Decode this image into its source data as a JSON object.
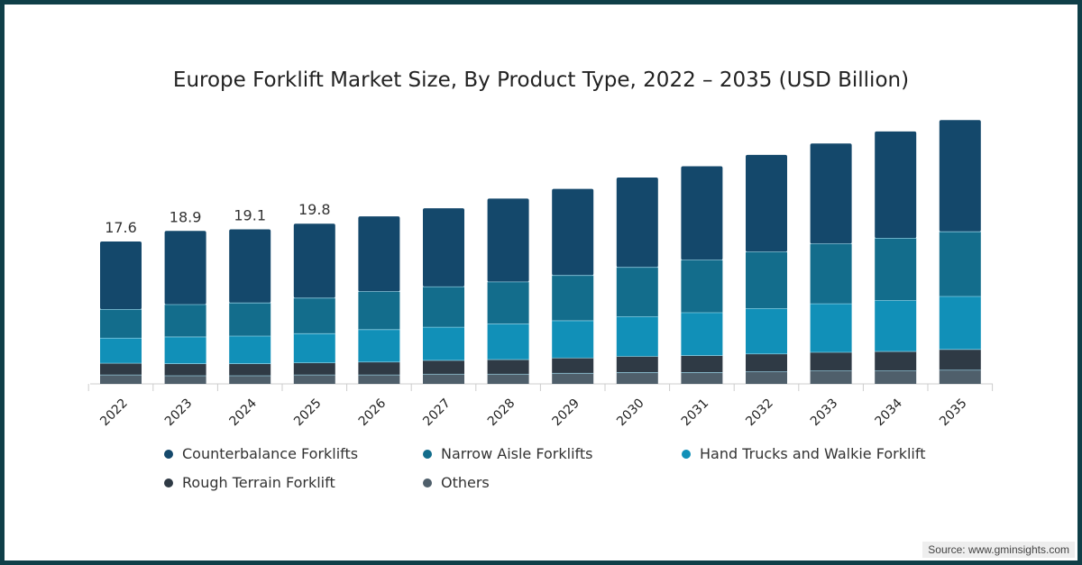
{
  "chart_data": {
    "type": "bar",
    "stacked": true,
    "title": "Europe Forklift Market Size, By Product Type, 2022 – 2035 (USD Billion)",
    "xlabel": "",
    "ylabel": "",
    "ylim": [
      0,
      35
    ],
    "grid": false,
    "legend_position": "bottom",
    "categories": [
      "2022",
      "2023",
      "2024",
      "2025",
      "2026",
      "2027",
      "2028",
      "2029",
      "2030",
      "2031",
      "2032",
      "2033",
      "2034",
      "2035"
    ],
    "series": [
      {
        "name": "Others",
        "color": "#4f5f6b",
        "values": [
          1.1,
          1.0,
          1.0,
          1.1,
          1.1,
          1.2,
          1.2,
          1.3,
          1.4,
          1.4,
          1.5,
          1.6,
          1.6,
          1.7
        ]
      },
      {
        "name": "Rough Terrain Forklift",
        "color": "#2f3a45",
        "values": [
          1.45,
          1.5,
          1.5,
          1.5,
          1.6,
          1.7,
          1.8,
          1.9,
          2.0,
          2.1,
          2.2,
          2.3,
          2.4,
          2.55
        ]
      },
      {
        "name": "Hand Trucks and Walkie Forklift",
        "color": "#1190b8",
        "values": [
          3.1,
          3.3,
          3.4,
          3.6,
          4.0,
          4.1,
          4.4,
          4.6,
          4.9,
          5.3,
          5.6,
          6.0,
          6.3,
          6.55
        ]
      },
      {
        "name": "Narrow Aisle Forklifts",
        "color": "#136d8c",
        "values": [
          3.55,
          4.0,
          4.1,
          4.4,
          4.7,
          5.0,
          5.2,
          5.6,
          6.1,
          6.5,
          7.0,
          7.4,
          7.7,
          8.0
        ]
      },
      {
        "name": "Counterbalance Forklifts",
        "color": "#14486b",
        "values": [
          8.4,
          9.1,
          9.1,
          9.2,
          9.3,
          9.7,
          10.3,
          10.7,
          11.1,
          11.6,
          12.0,
          12.4,
          13.2,
          13.8
        ]
      }
    ],
    "data_labels": [
      "17.6",
      "18.9",
      "19.1",
      "19.8"
    ],
    "legend_order": [
      "Counterbalance Forklifts",
      "Narrow Aisle Forklifts",
      "Hand Trucks and Walkie Forklift",
      "Rough Terrain Forklift",
      "Others"
    ]
  },
  "source": "Source: www.gminsights.com"
}
